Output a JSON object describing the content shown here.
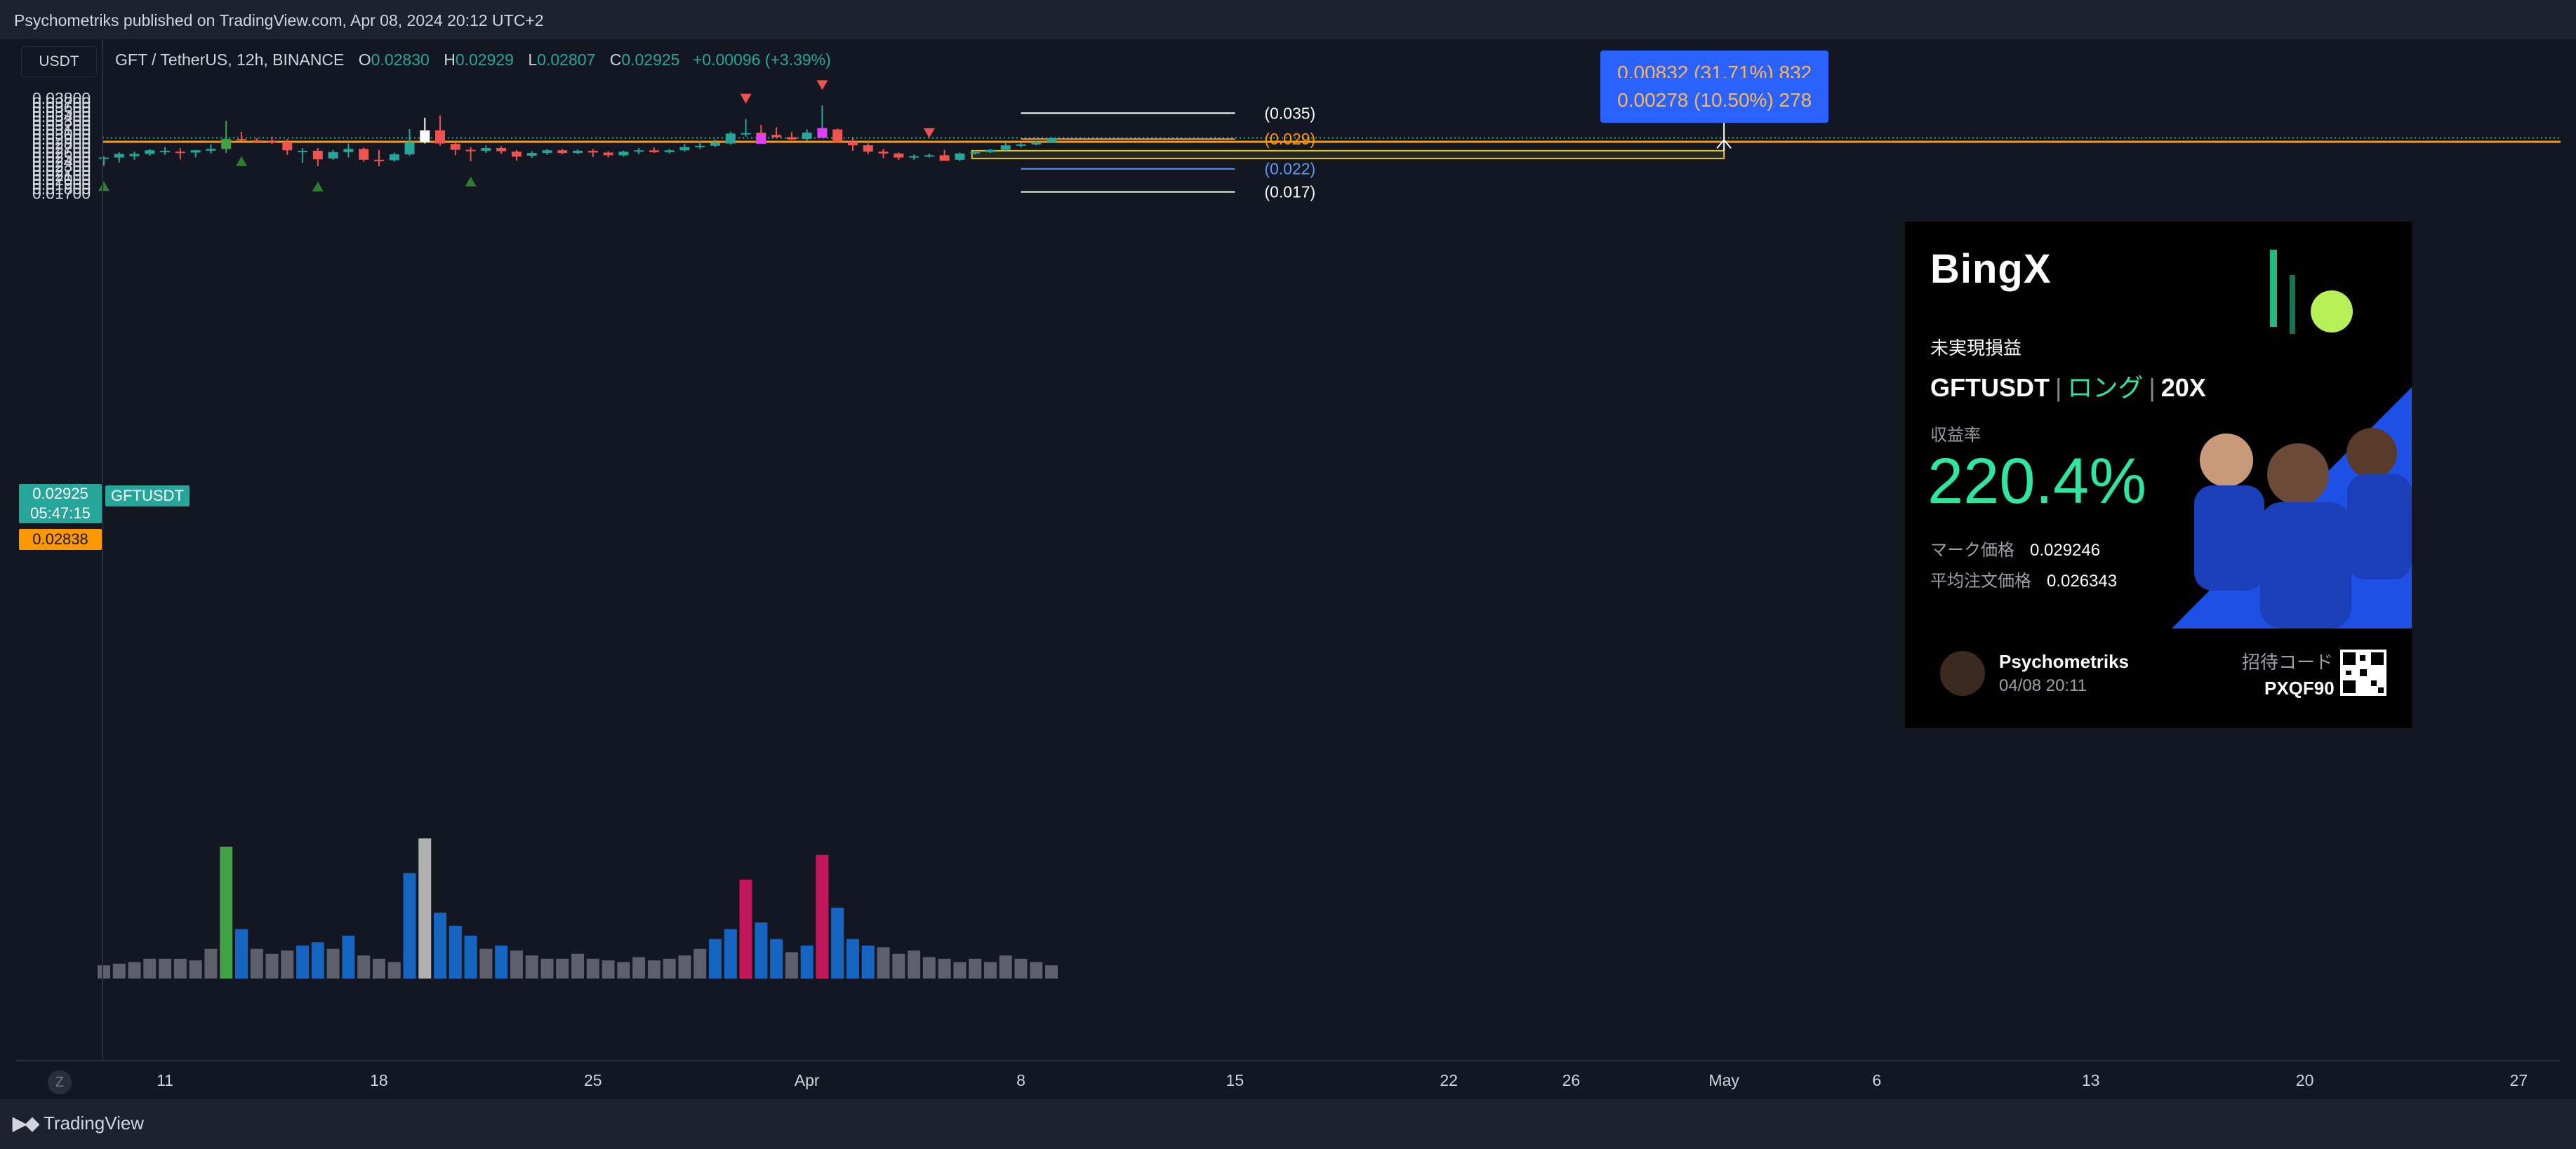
{
  "header": {
    "published": "Psychometriks published on TradingView.com, Apr 08, 2024 20:12 UTC+2"
  },
  "footer": {
    "logo_text": "TradingView",
    "z_label": "Z"
  },
  "legend": {
    "symbol": "GFT / TetherUS, 12h, BINANCE",
    "o_label": "O",
    "o": "0.02830",
    "h_label": "H",
    "h": "0.02929",
    "l_label": "L",
    "l": "0.02807",
    "c_label": "C",
    "c": "0.02925",
    "change": "+0.00096 (+3.39%)"
  },
  "price_scale": {
    "currency": "USDT",
    "ticks": [
      "0.03800",
      "0.03700",
      "0.03600",
      "0.03500",
      "0.03400",
      "0.03300",
      "0.03200",
      "0.03100",
      "0.03000",
      "0.02900",
      "0.02800",
      "0.02700",
      "0.02600",
      "0.02500",
      "0.02400",
      "0.02300",
      "0.02200",
      "0.02100",
      "0.02000",
      "0.01900",
      "0.01800",
      "0.01700"
    ],
    "tick_values": [
      0.038,
      0.037,
      0.036,
      0.035,
      0.034,
      0.033,
      0.032,
      0.031,
      0.03,
      0.029,
      0.028,
      0.027,
      0.026,
      0.025,
      0.024,
      0.023,
      0.022,
      0.021,
      0.02,
      0.019,
      0.018,
      0.017
    ],
    "last_price": "0.02925",
    "countdown": "05:47:15",
    "symbol_tag": "GFTUSDT",
    "line_price": "0.02838",
    "last_value": 0.02925,
    "line_value": 0.02838
  },
  "time_axis": {
    "labels": [
      "11",
      "18",
      "25",
      "Apr",
      "8",
      "15",
      "22",
      "26",
      "May",
      "6",
      "13",
      "20",
      "27"
    ],
    "days": [
      11,
      18,
      25,
      32,
      39,
      46,
      53,
      57,
      62,
      67,
      74,
      81,
      88
    ],
    "first_day": 9,
    "last_day": 90
  },
  "levels": [
    {
      "label": "(0.035)",
      "value": 0.0347,
      "color": "#ffffff"
    },
    {
      "label": "(0.029)",
      "value": 0.029,
      "color": "#ff9800"
    },
    {
      "label": "(0.022)",
      "value": 0.0224,
      "color": "#5b9cf6"
    },
    {
      "label": "(0.017)",
      "value": 0.0173,
      "color": "#ffffff"
    }
  ],
  "measure": {
    "upper_label": "0.00832 (31.71%) 832",
    "lower_label": "0.00278 (10.50%) 278",
    "top_value": 0.0346,
    "mid_value": 0.0288,
    "base_value": 0.0264
  },
  "zone": {
    "top": 0.0264,
    "bottom": 0.0247
  },
  "chart_data": {
    "type": "candlestick",
    "interval": "12h",
    "x_unit": "day of March 2024 (32 = Apr 1)",
    "candles": [
      {
        "d": 9.0,
        "o": 0.0248,
        "h": 0.0252,
        "l": 0.0231,
        "c": 0.0249
      },
      {
        "d": 9.5,
        "o": 0.0249,
        "h": 0.0261,
        "l": 0.0238,
        "c": 0.0257
      },
      {
        "d": 10.0,
        "o": 0.0252,
        "h": 0.0262,
        "l": 0.0244,
        "c": 0.0257
      },
      {
        "d": 10.5,
        "o": 0.0257,
        "h": 0.0268,
        "l": 0.0253,
        "c": 0.0265
      },
      {
        "d": 11.0,
        "o": 0.0262,
        "h": 0.0272,
        "l": 0.0255,
        "c": 0.0264
      },
      {
        "d": 11.5,
        "o": 0.0262,
        "h": 0.027,
        "l": 0.0245,
        "c": 0.0261
      },
      {
        "d": 12.0,
        "o": 0.026,
        "h": 0.0266,
        "l": 0.0249,
        "c": 0.0265
      },
      {
        "d": 12.5,
        "o": 0.0264,
        "h": 0.0278,
        "l": 0.0258,
        "c": 0.0268
      },
      {
        "d": 13.0,
        "o": 0.0268,
        "h": 0.033,
        "l": 0.0259,
        "c": 0.029
      },
      {
        "d": 13.5,
        "o": 0.029,
        "h": 0.0306,
        "l": 0.0286,
        "c": 0.0287
      },
      {
        "d": 14.0,
        "o": 0.0287,
        "h": 0.0292,
        "l": 0.0281,
        "c": 0.0284
      },
      {
        "d": 14.5,
        "o": 0.0285,
        "h": 0.0295,
        "l": 0.0279,
        "c": 0.0282
      },
      {
        "d": 15.0,
        "o": 0.0283,
        "h": 0.029,
        "l": 0.0255,
        "c": 0.0265
      },
      {
        "d": 15.5,
        "o": 0.0264,
        "h": 0.027,
        "l": 0.0237,
        "c": 0.0264
      },
      {
        "d": 16.0,
        "o": 0.0264,
        "h": 0.027,
        "l": 0.023,
        "c": 0.0245
      },
      {
        "d": 16.5,
        "o": 0.0247,
        "h": 0.0266,
        "l": 0.0244,
        "c": 0.0261
      },
      {
        "d": 17.0,
        "o": 0.0261,
        "h": 0.028,
        "l": 0.0249,
        "c": 0.0268
      },
      {
        "d": 17.5,
        "o": 0.0268,
        "h": 0.0271,
        "l": 0.024,
        "c": 0.0244
      },
      {
        "d": 18.0,
        "o": 0.0244,
        "h": 0.0266,
        "l": 0.023,
        "c": 0.0243
      },
      {
        "d": 18.5,
        "o": 0.0243,
        "h": 0.026,
        "l": 0.024,
        "c": 0.0256
      },
      {
        "d": 19.0,
        "o": 0.0256,
        "h": 0.0312,
        "l": 0.0253,
        "c": 0.0283
      },
      {
        "d": 19.5,
        "o": 0.0283,
        "h": 0.0337,
        "l": 0.028,
        "c": 0.0309
      },
      {
        "d": 20.0,
        "o": 0.0309,
        "h": 0.0342,
        "l": 0.0275,
        "c": 0.028
      },
      {
        "d": 20.5,
        "o": 0.0279,
        "h": 0.0283,
        "l": 0.0254,
        "c": 0.0266
      },
      {
        "d": 21.0,
        "o": 0.0266,
        "h": 0.0272,
        "l": 0.0241,
        "c": 0.0263
      },
      {
        "d": 21.5,
        "o": 0.0264,
        "h": 0.0276,
        "l": 0.0259,
        "c": 0.027
      },
      {
        "d": 22.0,
        "o": 0.027,
        "h": 0.0274,
        "l": 0.0257,
        "c": 0.0263
      },
      {
        "d": 22.5,
        "o": 0.0262,
        "h": 0.0266,
        "l": 0.0242,
        "c": 0.0251
      },
      {
        "d": 23.0,
        "o": 0.0253,
        "h": 0.0263,
        "l": 0.0248,
        "c": 0.0259
      },
      {
        "d": 23.5,
        "o": 0.0259,
        "h": 0.0268,
        "l": 0.0255,
        "c": 0.0265
      },
      {
        "d": 24.0,
        "o": 0.0265,
        "h": 0.0268,
        "l": 0.0256,
        "c": 0.0259
      },
      {
        "d": 24.5,
        "o": 0.0259,
        "h": 0.0267,
        "l": 0.0256,
        "c": 0.0264
      },
      {
        "d": 25.0,
        "o": 0.0264,
        "h": 0.0268,
        "l": 0.025,
        "c": 0.026
      },
      {
        "d": 25.5,
        "o": 0.026,
        "h": 0.0263,
        "l": 0.0249,
        "c": 0.0254
      },
      {
        "d": 26.0,
        "o": 0.0254,
        "h": 0.0264,
        "l": 0.0251,
        "c": 0.0262
      },
      {
        "d": 26.5,
        "o": 0.0262,
        "h": 0.027,
        "l": 0.0256,
        "c": 0.0265
      },
      {
        "d": 27.0,
        "o": 0.0265,
        "h": 0.0271,
        "l": 0.0259,
        "c": 0.0261
      },
      {
        "d": 27.5,
        "o": 0.0261,
        "h": 0.0268,
        "l": 0.0258,
        "c": 0.0265
      },
      {
        "d": 28.0,
        "o": 0.0265,
        "h": 0.0279,
        "l": 0.0262,
        "c": 0.0272
      },
      {
        "d": 28.5,
        "o": 0.0272,
        "h": 0.0285,
        "l": 0.0268,
        "c": 0.0275
      },
      {
        "d": 29.0,
        "o": 0.0275,
        "h": 0.0289,
        "l": 0.0272,
        "c": 0.0282
      },
      {
        "d": 29.5,
        "o": 0.028,
        "h": 0.0306,
        "l": 0.0278,
        "c": 0.0302
      },
      {
        "d": 30.0,
        "o": 0.0302,
        "h": 0.0334,
        "l": 0.0295,
        "c": 0.0303
      },
      {
        "d": 30.5,
        "o": 0.0304,
        "h": 0.0321,
        "l": 0.0296,
        "c": 0.0298
      },
      {
        "d": 31.0,
        "o": 0.0299,
        "h": 0.0316,
        "l": 0.0292,
        "c": 0.0294
      },
      {
        "d": 31.5,
        "o": 0.0294,
        "h": 0.0305,
        "l": 0.0288,
        "c": 0.0289
      },
      {
        "d": 32.0,
        "o": 0.029,
        "h": 0.0311,
        "l": 0.0286,
        "c": 0.0304
      },
      {
        "d": 32.5,
        "o": 0.0304,
        "h": 0.0364,
        "l": 0.0297,
        "c": 0.0311
      },
      {
        "d": 33.0,
        "o": 0.0311,
        "h": 0.0313,
        "l": 0.0282,
        "c": 0.0284
      },
      {
        "d": 33.5,
        "o": 0.0284,
        "h": 0.0292,
        "l": 0.0264,
        "c": 0.0276
      },
      {
        "d": 34.0,
        "o": 0.0276,
        "h": 0.028,
        "l": 0.0256,
        "c": 0.0262
      },
      {
        "d": 34.5,
        "o": 0.0262,
        "h": 0.0268,
        "l": 0.0248,
        "c": 0.0258
      },
      {
        "d": 35.0,
        "o": 0.0258,
        "h": 0.026,
        "l": 0.0243,
        "c": 0.0249
      },
      {
        "d": 35.5,
        "o": 0.0249,
        "h": 0.0256,
        "l": 0.0244,
        "c": 0.0252
      },
      {
        "d": 36.0,
        "o": 0.0252,
        "h": 0.0258,
        "l": 0.0249,
        "c": 0.0254
      },
      {
        "d": 36.5,
        "o": 0.0254,
        "h": 0.0266,
        "l": 0.0242,
        "c": 0.0242
      },
      {
        "d": 37.0,
        "o": 0.0244,
        "h": 0.026,
        "l": 0.0241,
        "c": 0.0258
      },
      {
        "d": 37.5,
        "o": 0.0258,
        "h": 0.0265,
        "l": 0.0255,
        "c": 0.0261
      },
      {
        "d": 38.0,
        "o": 0.0261,
        "h": 0.0268,
        "l": 0.0259,
        "c": 0.0266
      },
      {
        "d": 38.5,
        "o": 0.0266,
        "h": 0.0281,
        "l": 0.0264,
        "c": 0.0276
      },
      {
        "d": 39.0,
        "o": 0.0276,
        "h": 0.0283,
        "l": 0.0271,
        "c": 0.0278
      },
      {
        "d": 39.5,
        "o": 0.0278,
        "h": 0.0286,
        "l": 0.0276,
        "c": 0.0283
      },
      {
        "d": 40.0,
        "o": 0.0283,
        "h": 0.0293,
        "l": 0.0281,
        "c": 0.0292
      }
    ],
    "volume": [
      8,
      9,
      10,
      12,
      12,
      12,
      11,
      18,
      80,
      30,
      18,
      15,
      17,
      20,
      22,
      18,
      26,
      14,
      12,
      10,
      64,
      85,
      40,
      32,
      26,
      18,
      20,
      17,
      14,
      12,
      12,
      15,
      12,
      11,
      10,
      13,
      11,
      12,
      14,
      18,
      24,
      30,
      60,
      34,
      24,
      16,
      20,
      75,
      43,
      24,
      20,
      19,
      15,
      17,
      13,
      12,
      10,
      12,
      10,
      14,
      12,
      10,
      8
    ],
    "markers_up": [
      9.0,
      13.5,
      16.0,
      21.0
    ],
    "markers_down": [
      30.0,
      32.5,
      36.0
    ]
  },
  "card": {
    "brand": "BingX",
    "pnl_title": "未実現損益",
    "pair": "GFTUSDT",
    "side": "ロング",
    "leverage": "20X",
    "roi_label": "収益率",
    "roi": "220.4%",
    "mark_label": "マーク価格",
    "mark_value": "0.029246",
    "avg_label": "平均注文価格",
    "avg_value": "0.026343",
    "user": "Psychometriks",
    "time": "04/08 20:11",
    "invite_label": "招待コード",
    "invite_code": "PXQF90"
  },
  "colors": {
    "background": "#131722",
    "bull": "#26a69a",
    "bear": "#ef5350",
    "grid": "#1e222d",
    "orange_line": "#ff9800",
    "zone_border": "#e6c62d",
    "zone_fill": "#2a2a1e",
    "measure_box": "#2962ff",
    "card_accent": "#2ee6a0"
  }
}
